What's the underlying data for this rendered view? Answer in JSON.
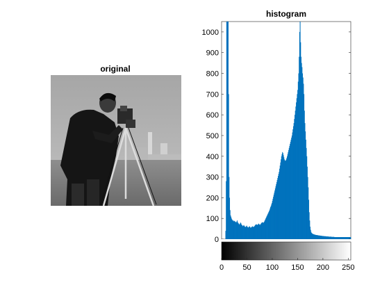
{
  "image_panel": {
    "title": "original"
  },
  "chart_data": {
    "type": "bar",
    "title": "histogram",
    "xlabel": "",
    "ylabel": "",
    "xlim": [
      0,
      255
    ],
    "ylim": [
      0,
      1050
    ],
    "x_ticks": [
      0,
      50,
      100,
      150,
      200,
      250
    ],
    "y_ticks": [
      0,
      100,
      200,
      300,
      400,
      500,
      600,
      700,
      800,
      900,
      1000
    ],
    "bins": "0-255 (256 intensity levels)",
    "bar_color": "#0072BD",
    "colorbar": "gray, 0 (black) to 255 (white)",
    "series": [
      {
        "values": [
          0,
          0,
          0,
          0,
          0,
          0,
          0,
          0,
          40,
          280,
          1050,
          1050,
          1050,
          1050,
          700,
          300,
          200,
          140,
          115,
          108,
          100,
          95,
          92,
          88,
          90,
          85,
          88,
          86,
          84,
          82,
          80,
          85,
          90,
          82,
          78,
          75,
          72,
          70,
          75,
          80,
          76,
          70,
          68,
          65,
          62,
          65,
          68,
          64,
          60,
          58,
          60,
          62,
          65,
          60,
          58,
          55,
          58,
          60,
          62,
          58,
          55,
          56,
          58,
          60,
          62,
          60,
          58,
          60,
          62,
          65,
          68,
          70,
          72,
          70,
          68,
          70,
          72,
          75,
          72,
          70,
          68,
          72,
          75,
          78,
          80,
          82,
          80,
          78,
          82,
          85,
          90,
          95,
          100,
          105,
          110,
          115,
          120,
          125,
          130,
          135,
          140,
          148,
          155,
          160,
          168,
          175,
          185,
          195,
          205,
          215,
          225,
          235,
          245,
          255,
          265,
          275,
          285,
          295,
          305,
          315,
          325,
          340,
          355,
          370,
          385,
          400,
          410,
          420,
          415,
          405,
          395,
          385,
          380,
          378,
          380,
          385,
          392,
          400,
          410,
          420,
          430,
          440,
          450,
          460,
          470,
          480,
          490,
          500,
          515,
          530,
          545,
          560,
          580,
          600,
          620,
          640,
          660,
          680,
          700,
          720,
          760,
          800,
          880,
          1000,
          1050,
          950,
          880,
          850,
          830,
          800,
          780,
          750,
          700,
          620,
          560,
          520,
          480,
          440,
          400,
          350,
          300,
          250,
          190,
          130,
          90,
          60,
          45,
          35,
          30,
          28,
          26,
          25,
          24,
          23,
          22,
          22,
          21,
          20,
          20,
          20,
          19,
          19,
          18,
          18,
          18,
          17,
          17,
          17,
          16,
          16,
          16,
          15,
          15,
          15,
          15,
          14,
          14,
          14,
          14,
          13,
          13,
          13,
          13,
          13,
          12,
          12,
          12,
          12,
          12,
          12,
          11,
          11,
          11,
          11,
          11,
          11,
          10,
          10,
          10,
          10,
          10,
          10,
          10,
          10,
          10,
          10,
          10,
          10,
          10,
          10,
          10,
          10,
          10,
          10,
          10,
          10,
          10,
          10,
          10,
          10,
          10,
          10,
          10,
          10,
          10,
          10,
          10,
          10,
          10,
          10,
          10
        ]
      }
    ]
  }
}
